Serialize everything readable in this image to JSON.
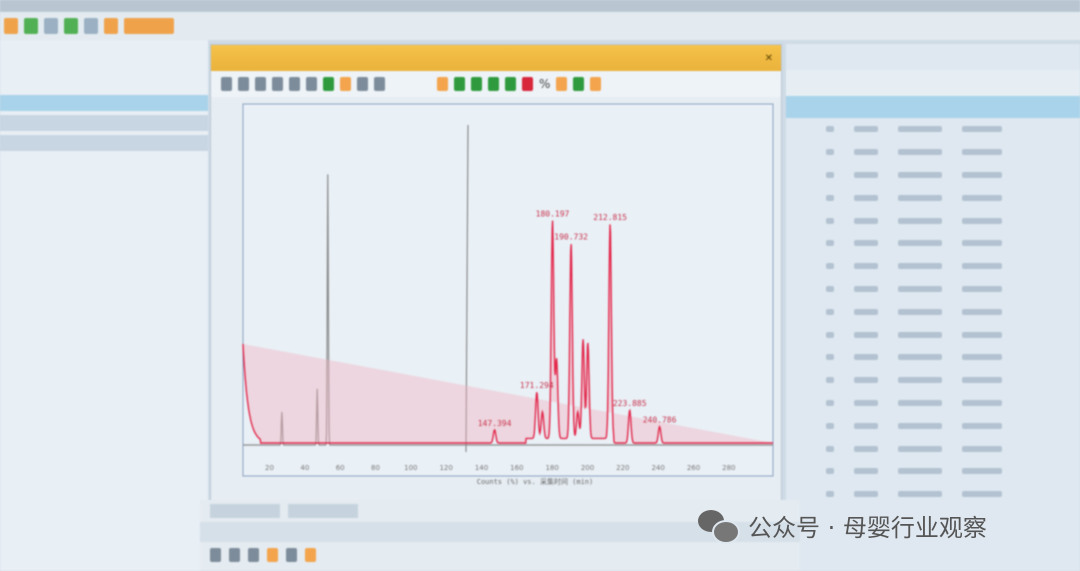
{
  "window": {
    "close_icon": "close-icon"
  },
  "toolbar_percent": "%",
  "watermark": {
    "icon": "wechat-icon",
    "text": "公众号 · 母婴行业观察"
  },
  "colors": {
    "trace": "#e3264a",
    "window_title": "#f0b940",
    "selection": "#a8d3ea"
  },
  "chart_data": {
    "type": "line",
    "xlabel": "Counts (%) vs. 采集时间 (min)",
    "xlim": [
      5,
      305
    ],
    "ylim": [
      0,
      100
    ],
    "x_ticks": [
      20,
      40,
      60,
      80,
      100,
      120,
      140,
      160,
      180,
      200,
      220,
      240,
      260,
      280
    ],
    "peak_labels": [
      "180.197",
      "190.732",
      "212.815",
      "171.294",
      "147.394",
      "223.885",
      "240.786"
    ],
    "peaks": [
      {
        "rt": 147.4,
        "height": 4
      },
      {
        "rt": 171.3,
        "height": 14
      },
      {
        "rt": 174.5,
        "height": 8
      },
      {
        "rt": 180.2,
        "height": 66
      },
      {
        "rt": 182.5,
        "height": 24
      },
      {
        "rt": 190.7,
        "height": 59
      },
      {
        "rt": 194.5,
        "height": 8
      },
      {
        "rt": 197.5,
        "height": 30
      },
      {
        "rt": 200.2,
        "height": 29
      },
      {
        "rt": 212.8,
        "height": 65
      },
      {
        "rt": 223.9,
        "height": 10
      },
      {
        "rt": 240.8,
        "height": 5
      }
    ],
    "reference_trace": {
      "color": "#8a8a8a",
      "peaks": [
        {
          "rt": 53,
          "height": 82
        },
        {
          "rt": 47,
          "height": 17
        },
        {
          "rt": 27,
          "height": 10
        }
      ]
    }
  }
}
